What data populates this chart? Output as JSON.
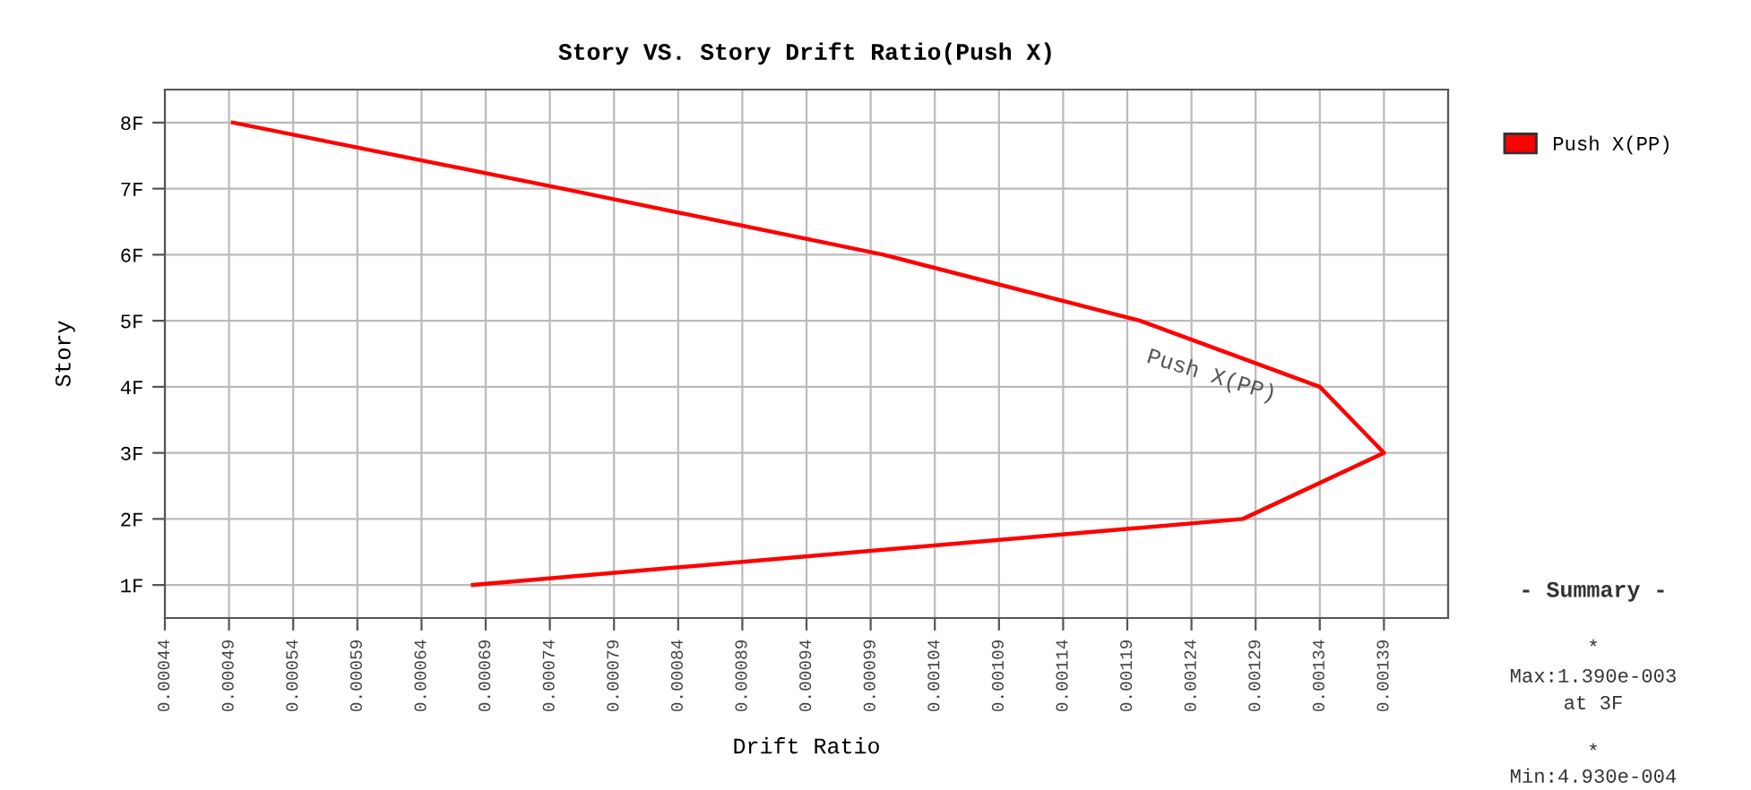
{
  "chart_data": {
    "type": "line",
    "orientation": "horizontal",
    "title": "Story VS. Story Drift Ratio(Push X)",
    "xlabel": "Drift Ratio",
    "ylabel": "Story",
    "categories": [
      "8F",
      "7F",
      "6F",
      "5F",
      "4F",
      "3F",
      "2F",
      "1F"
    ],
    "series": [
      {
        "name": "Push X(PP)",
        "color": "#ff0000",
        "values": [
          0.000493,
          0.00075,
          0.001,
          0.0012,
          0.00134,
          0.00139,
          0.00128,
          0.00068
        ]
      }
    ],
    "xlim": [
      0.00044,
      0.00144
    ],
    "xticks": [
      {
        "value": 0.00044,
        "label": "0.00044"
      },
      {
        "value": 0.00049,
        "label": "0.00049"
      },
      {
        "value": 0.00054,
        "label": "0.00054"
      },
      {
        "value": 0.00059,
        "label": "0.00059"
      },
      {
        "value": 0.00064,
        "label": "0.00064"
      },
      {
        "value": 0.00069,
        "label": "0.00069"
      },
      {
        "value": 0.00074,
        "label": "0.00074"
      },
      {
        "value": 0.00079,
        "label": "0.00079"
      },
      {
        "value": 0.00084,
        "label": "0.00084"
      },
      {
        "value": 0.00089,
        "label": "0.00089"
      },
      {
        "value": 0.00094,
        "label": "0.00094"
      },
      {
        "value": 0.00099,
        "label": "0.00099"
      },
      {
        "value": 0.00104,
        "label": "0.00104"
      },
      {
        "value": 0.00109,
        "label": "0.00109"
      },
      {
        "value": 0.00114,
        "label": "0.00114"
      },
      {
        "value": 0.00119,
        "label": "0.00119"
      },
      {
        "value": 0.00124,
        "label": "0.00124"
      },
      {
        "value": 0.00129,
        "label": "0.00129"
      },
      {
        "value": 0.00134,
        "label": "0.00134"
      },
      {
        "value": 0.00139,
        "label": "0.00139"
      }
    ],
    "grid": true,
    "legend": "top right",
    "marker": "none",
    "line_style": "solid",
    "annotations": [
      "Push X(PP)",
      "- Summary -",
      "*",
      "Max:1.390e-003",
      "at 3F",
      "*",
      "Min:4.930e-004"
    ]
  }
}
